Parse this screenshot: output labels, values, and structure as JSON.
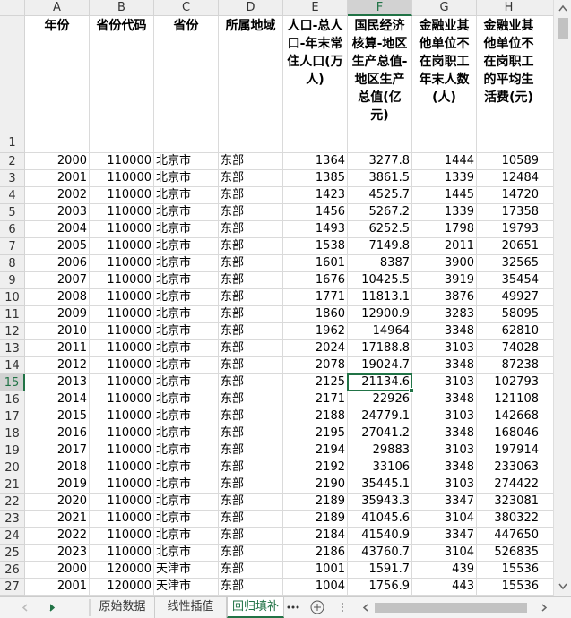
{
  "columns": [
    "A",
    "B",
    "C",
    "D",
    "E",
    "F",
    "G",
    "H"
  ],
  "row_numbers": [
    1,
    2,
    3,
    4,
    5,
    6,
    7,
    8,
    9,
    10,
    11,
    12,
    13,
    14,
    15,
    16,
    17,
    18,
    19,
    20,
    21,
    22,
    23,
    24,
    25,
    26,
    27
  ],
  "header": [
    "年份",
    "省份代码",
    "省份",
    "所属地域",
    "人口-总人口-年末常住人口(万人)",
    "国民经济核算-地区生产总值-地区生产总值(亿元)",
    "金融业其他单位不在岗职工年末人数(人)",
    "金融业其他单位不在岗职工的平均生活费(元)"
  ],
  "rows": [
    [
      "2000",
      "110000",
      "北京市",
      "东部",
      "1364",
      "3277.8",
      "1444",
      "10589"
    ],
    [
      "2001",
      "110000",
      "北京市",
      "东部",
      "1385",
      "3861.5",
      "1339",
      "12484"
    ],
    [
      "2002",
      "110000",
      "北京市",
      "东部",
      "1423",
      "4525.7",
      "1445",
      "14720"
    ],
    [
      "2003",
      "110000",
      "北京市",
      "东部",
      "1456",
      "5267.2",
      "1339",
      "17358"
    ],
    [
      "2004",
      "110000",
      "北京市",
      "东部",
      "1493",
      "6252.5",
      "1798",
      "19793"
    ],
    [
      "2005",
      "110000",
      "北京市",
      "东部",
      "1538",
      "7149.8",
      "2011",
      "20651"
    ],
    [
      "2006",
      "110000",
      "北京市",
      "东部",
      "1601",
      "8387",
      "3900",
      "32565"
    ],
    [
      "2007",
      "110000",
      "北京市",
      "东部",
      "1676",
      "10425.5",
      "3919",
      "35454"
    ],
    [
      "2008",
      "110000",
      "北京市",
      "东部",
      "1771",
      "11813.1",
      "3876",
      "49927"
    ],
    [
      "2009",
      "110000",
      "北京市",
      "东部",
      "1860",
      "12900.9",
      "3283",
      "58095"
    ],
    [
      "2010",
      "110000",
      "北京市",
      "东部",
      "1962",
      "14964",
      "3348",
      "62810"
    ],
    [
      "2011",
      "110000",
      "北京市",
      "东部",
      "2024",
      "17188.8",
      "3103",
      "74028"
    ],
    [
      "2012",
      "110000",
      "北京市",
      "东部",
      "2078",
      "19024.7",
      "3348",
      "87238"
    ],
    [
      "2013",
      "110000",
      "北京市",
      "东部",
      "2125",
      "21134.6",
      "3103",
      "102793"
    ],
    [
      "2014",
      "110000",
      "北京市",
      "东部",
      "2171",
      "22926",
      "3348",
      "121108"
    ],
    [
      "2015",
      "110000",
      "北京市",
      "东部",
      "2188",
      "24779.1",
      "3103",
      "142668"
    ],
    [
      "2016",
      "110000",
      "北京市",
      "东部",
      "2195",
      "27041.2",
      "3348",
      "168046"
    ],
    [
      "2017",
      "110000",
      "北京市",
      "东部",
      "2194",
      "29883",
      "3103",
      "197914"
    ],
    [
      "2018",
      "110000",
      "北京市",
      "东部",
      "2192",
      "33106",
      "3348",
      "233063"
    ],
    [
      "2019",
      "110000",
      "北京市",
      "东部",
      "2190",
      "35445.1",
      "3103",
      "274422"
    ],
    [
      "2020",
      "110000",
      "北京市",
      "东部",
      "2189",
      "35943.3",
      "3347",
      "323081"
    ],
    [
      "2021",
      "110000",
      "北京市",
      "东部",
      "2189",
      "41045.6",
      "3104",
      "380322"
    ],
    [
      "2022",
      "110000",
      "北京市",
      "东部",
      "2184",
      "41540.9",
      "3347",
      "447650"
    ],
    [
      "2023",
      "110000",
      "北京市",
      "东部",
      "2186",
      "43760.7",
      "3104",
      "526835"
    ],
    [
      "2000",
      "120000",
      "天津市",
      "东部",
      "1001",
      "1591.7",
      "439",
      "15536"
    ],
    [
      "2001",
      "120000",
      "天津市",
      "东部",
      "1004",
      "1756.9",
      "443",
      "15536"
    ]
  ],
  "sheet_tabs": [
    "原始数据",
    "线性插值",
    "回归填补"
  ]
}
